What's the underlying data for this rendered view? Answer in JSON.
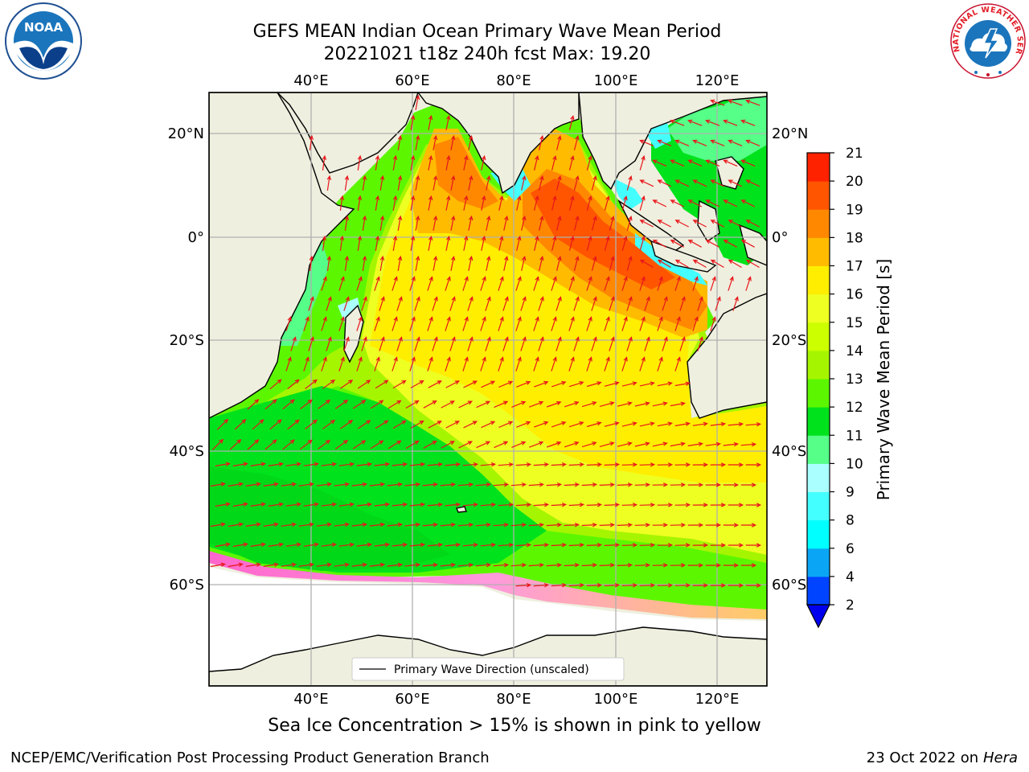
{
  "title": {
    "line1": "GEFS MEAN Indian Ocean Primary Wave Mean Period",
    "line2": "20221021 t18z 240h fcst   Max: 19.20"
  },
  "map": {
    "lon_labels": [
      "40°E",
      "60°E",
      "80°E",
      "100°E",
      "120°E"
    ],
    "lat_labels": [
      "20°N",
      "0°",
      "20°S",
      "40°S",
      "60°S"
    ],
    "legend_label": "Primary Wave Direction (unscaled)",
    "land_color": "#efefdf",
    "arrow_color": "#e8161b"
  },
  "colorbar": {
    "label": "Primary Wave Mean Period [s]",
    "ticks": [
      "2",
      "4",
      "6",
      "8",
      "9",
      "10",
      "11",
      "12",
      "13",
      "14",
      "15",
      "16",
      "17",
      "18",
      "19",
      "20",
      "21"
    ],
    "colors": [
      "#0044ff",
      "#0aa6f5",
      "#00ffff",
      "#44ffff",
      "#aaffff",
      "#55ff88",
      "#00e21c",
      "#5cf700",
      "#a6f500",
      "#ccff00",
      "#eeff22",
      "#ffee00",
      "#ffbb00",
      "#ff8800",
      "#ff5500",
      "#ff2200"
    ],
    "extend_color": "#0000ee"
  },
  "caption": "Sea Ice Concentration > 15% is shown in pink to yellow",
  "footer": {
    "left": "NCEP/EMC/Verification Post Processing Product Generation Branch",
    "date": "23 Oct 2022 on ",
    "machine": "Hera"
  },
  "logos": {
    "noaa_text": "NOAA",
    "nws_text": "NATIONAL WEATHER SERVICE"
  }
}
